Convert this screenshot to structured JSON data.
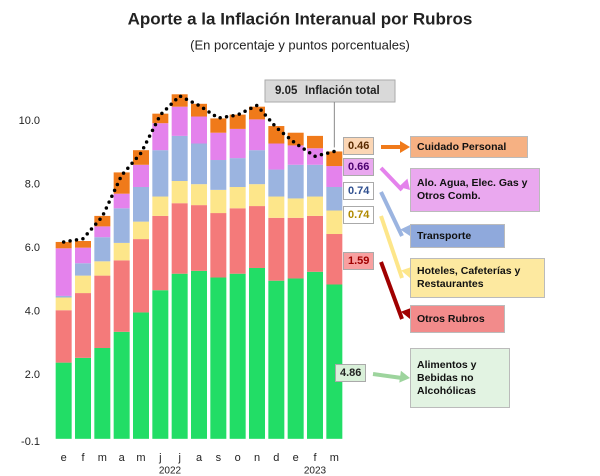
{
  "chart_data": {
    "type": "stacked_bar",
    "title": "Aporte a la Inflación Interanual por Rubros",
    "subtitle": "(En porcentaje y puntos porcentuales)",
    "categories": [
      "e",
      "f",
      "m",
      "a",
      "m",
      "j",
      "j",
      "a",
      "s",
      "o",
      "n",
      "d",
      "e",
      "f",
      "m"
    ],
    "years": [
      "2022",
      "2023"
    ],
    "series": [
      {
        "name": "Alimentos y Bebidas no Alcohólicas",
        "color": "#22dd66",
        "values": [
          2.4,
          2.55,
          2.86,
          3.37,
          3.98,
          4.68,
          5.2,
          5.29,
          5.08,
          5.2,
          5.38,
          4.98,
          5.05,
          5.26,
          4.86
        ]
      },
      {
        "name": "Otros Rubros",
        "color": "#f47a7a",
        "values": [
          1.65,
          2.04,
          2.28,
          2.25,
          2.31,
          2.34,
          2.22,
          2.07,
          2.03,
          2.06,
          1.95,
          1.98,
          1.91,
          1.76,
          1.59
        ]
      },
      {
        "name": "Hoteles, Cafeterías y Restaurantes",
        "color": "#fde68a",
        "values": [
          0.4,
          0.55,
          0.45,
          0.55,
          0.55,
          0.61,
          0.7,
          0.66,
          0.73,
          0.67,
          0.69,
          0.67,
          0.61,
          0.61,
          0.74
        ]
      },
      {
        "name": "Transporte",
        "color": "#9bb4e0",
        "values": [
          0.05,
          0.39,
          0.76,
          1.09,
          1.09,
          1.46,
          1.42,
          1.28,
          0.94,
          0.91,
          1.07,
          0.85,
          1.06,
          1.0,
          0.74
        ]
      },
      {
        "name": "Alo. Agua, Elec. Gas y Otros Comb.",
        "color": "#e482ec",
        "values": [
          1.5,
          0.49,
          0.34,
          0.46,
          0.7,
          0.85,
          0.92,
          0.85,
          0.86,
          0.92,
          0.97,
          0.82,
          0.61,
          0.52,
          0.66
        ]
      },
      {
        "name": "Cuidado Personal",
        "color": "#f07a1a",
        "values": [
          0.2,
          0.21,
          0.33,
          0.67,
          0.46,
          0.3,
          0.39,
          0.4,
          0.45,
          0.45,
          0.4,
          0.55,
          0.4,
          0.39,
          0.46
        ]
      }
    ],
    "line_values": [
      6.2,
      6.3,
      7.0,
      8.3,
      9.0,
      10.2,
      10.8,
      10.5,
      10.1,
      10.2,
      10.5,
      9.8,
      9.3,
      8.9,
      9.05
    ],
    "annotation": "Inflación total",
    "ylim": [
      -0.1,
      11.3
    ],
    "yticks": [
      -0.1,
      {
        "value": 2,
        "label": "2.0"
      },
      {
        "value": 4,
        "label": "4.0"
      },
      {
        "value": 6,
        "label": "6.0"
      },
      {
        "value": 8,
        "label": "8.0"
      },
      {
        "value": 10,
        "label": "10.0"
      }
    ]
  }
}
